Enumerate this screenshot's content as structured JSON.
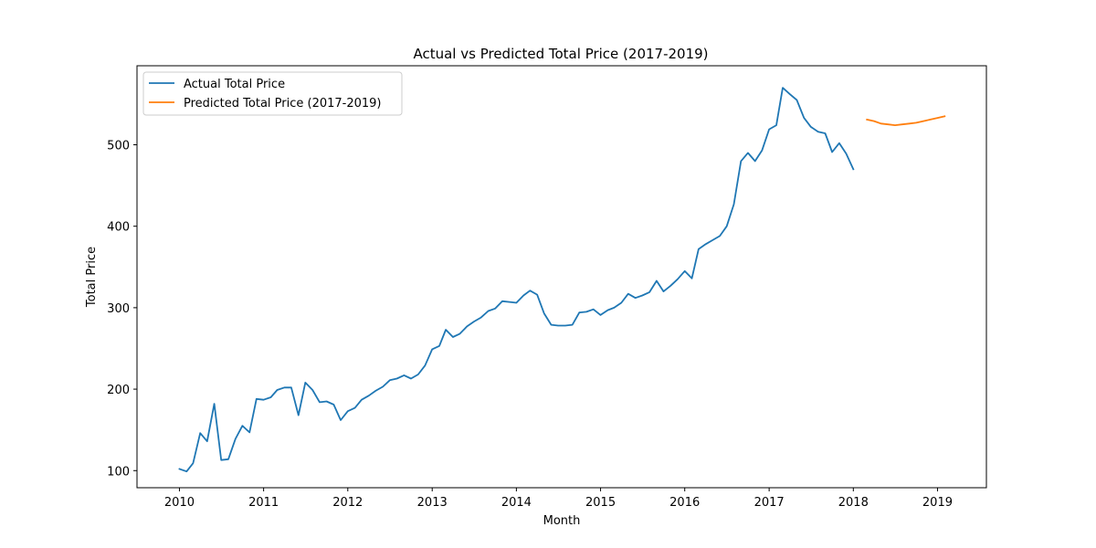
{
  "chart_data": {
    "type": "line",
    "title": "Actual vs Predicted Total Price (2017-2019)",
    "xlabel": "Month",
    "ylabel": "Total Price",
    "xlim": [
      "2009-07-01",
      "2019-08-01"
    ],
    "ylim": [
      79,
      597
    ],
    "x_ticks": [
      {
        "date": "2010-01-01",
        "label": "2010"
      },
      {
        "date": "2011-01-01",
        "label": "2011"
      },
      {
        "date": "2012-01-01",
        "label": "2012"
      },
      {
        "date": "2013-01-01",
        "label": "2013"
      },
      {
        "date": "2014-01-01",
        "label": "2014"
      },
      {
        "date": "2015-01-01",
        "label": "2015"
      },
      {
        "date": "2016-01-01",
        "label": "2016"
      },
      {
        "date": "2017-01-01",
        "label": "2017"
      },
      {
        "date": "2018-01-01",
        "label": "2018"
      },
      {
        "date": "2019-01-01",
        "label": "2019"
      }
    ],
    "y_ticks": [
      100,
      200,
      300,
      400,
      500
    ],
    "grid": false,
    "legend": "top-left",
    "series": [
      {
        "name": "Actual Total Price",
        "color": "#1f77b4",
        "x": [
          "2010-01-01",
          "2010-02-01",
          "2010-03-01",
          "2010-04-01",
          "2010-05-01",
          "2010-06-01",
          "2010-07-01",
          "2010-08-01",
          "2010-09-01",
          "2010-10-01",
          "2010-11-01",
          "2010-12-01",
          "2011-01-01",
          "2011-02-01",
          "2011-03-01",
          "2011-04-01",
          "2011-05-01",
          "2011-06-01",
          "2011-07-01",
          "2011-08-01",
          "2011-09-01",
          "2011-10-01",
          "2011-11-01",
          "2011-12-01",
          "2012-01-01",
          "2012-02-01",
          "2012-03-01",
          "2012-04-01",
          "2012-05-01",
          "2012-06-01",
          "2012-07-01",
          "2012-08-01",
          "2012-09-01",
          "2012-10-01",
          "2012-11-01",
          "2012-12-01",
          "2013-01-01",
          "2013-02-01",
          "2013-03-01",
          "2013-04-01",
          "2013-05-01",
          "2013-06-01",
          "2013-07-01",
          "2013-08-01",
          "2013-09-01",
          "2013-10-01",
          "2013-11-01",
          "2013-12-01",
          "2014-01-01",
          "2014-02-01",
          "2014-03-01",
          "2014-04-01",
          "2014-05-01",
          "2014-06-01",
          "2014-07-01",
          "2014-08-01",
          "2014-09-01",
          "2014-10-01",
          "2014-11-01",
          "2014-12-01",
          "2015-01-01",
          "2015-02-01",
          "2015-03-01",
          "2015-04-01",
          "2015-05-01",
          "2015-06-01",
          "2015-07-01",
          "2015-08-01",
          "2015-09-01",
          "2015-10-01",
          "2015-11-01",
          "2015-12-01",
          "2016-01-01",
          "2016-02-01",
          "2016-03-01",
          "2016-04-01",
          "2016-05-01",
          "2016-06-01",
          "2016-07-01",
          "2016-08-01",
          "2016-09-01",
          "2016-10-01",
          "2016-11-01",
          "2016-12-01",
          "2017-01-01",
          "2017-02-01",
          "2017-03-01",
          "2017-04-01",
          "2017-05-01",
          "2017-06-01",
          "2017-07-01",
          "2017-08-01",
          "2017-09-01",
          "2017-10-01",
          "2017-11-01",
          "2017-12-01",
          "2018-01-01"
        ],
        "values": [
          102,
          99,
          109,
          146,
          136,
          182,
          113,
          114,
          139,
          155,
          147,
          188,
          187,
          190,
          199,
          202,
          202,
          168,
          208,
          199,
          184,
          185,
          181,
          162,
          173,
          177,
          187,
          192,
          198,
          203,
          211,
          213,
          217,
          213,
          218,
          229,
          249,
          253,
          273,
          264,
          268,
          277,
          283,
          288,
          296,
          299,
          308,
          307,
          306,
          315,
          321,
          316,
          293,
          279,
          278,
          278,
          279,
          294,
          295,
          298,
          291,
          297,
          300,
          306,
          317,
          312,
          315,
          319,
          333,
          320,
          327,
          335,
          345,
          336,
          372,
          378,
          383,
          388,
          400,
          427,
          480,
          490,
          480,
          493,
          519,
          524,
          570,
          562,
          555,
          533,
          522,
          516,
          514,
          491,
          502,
          489,
          470
        ]
      },
      {
        "name": "Predicted Total Price (2017-2019)",
        "color": "#ff7f0e",
        "x": [
          "2018-03-01",
          "2018-04-01",
          "2018-05-01",
          "2018-06-01",
          "2018-07-01",
          "2018-08-01",
          "2018-09-01",
          "2018-10-01",
          "2018-11-01",
          "2018-12-01",
          "2019-01-01",
          "2019-02-01"
        ],
        "values": [
          531,
          529,
          526,
          525,
          524,
          525,
          526,
          527,
          529,
          531,
          533,
          535
        ]
      }
    ]
  }
}
